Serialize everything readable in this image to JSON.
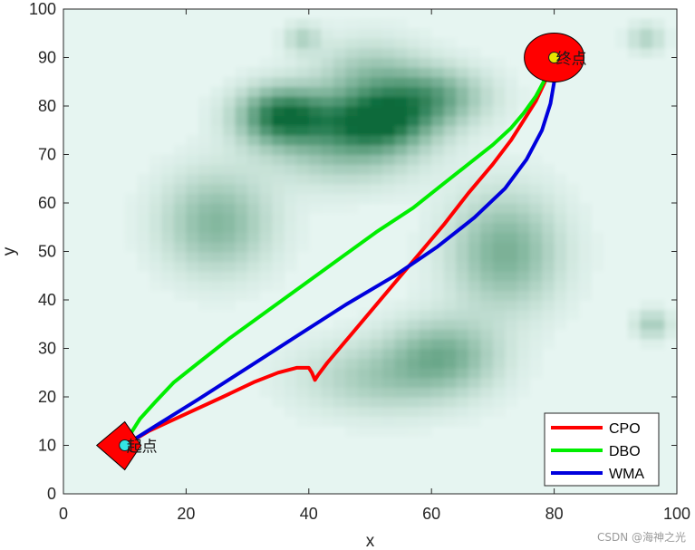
{
  "chart_data": {
    "type": "line",
    "xlabel": "x",
    "ylabel": "y",
    "xlim": [
      0,
      100
    ],
    "ylim": [
      0,
      100
    ],
    "xticks": [
      0,
      20,
      40,
      60,
      80,
      100
    ],
    "yticks": [
      0,
      10,
      20,
      30,
      40,
      50,
      60,
      70,
      80,
      90,
      100
    ],
    "grid": false,
    "legend_position": "bottom-right",
    "background": {
      "type": "heatmap",
      "low_color": "#e6f5f1",
      "high_color": "#0b6b3a",
      "blobs": [
        {
          "x": 36,
          "y": 78,
          "sx": 5,
          "sy": 4,
          "a": 0.95
        },
        {
          "x": 51,
          "y": 77,
          "sx": 6,
          "sy": 4,
          "a": 0.9
        },
        {
          "x": 60,
          "y": 82,
          "sx": 6,
          "sy": 4,
          "a": 0.55
        },
        {
          "x": 50,
          "y": 86,
          "sx": 6,
          "sy": 5,
          "a": 0.35
        },
        {
          "x": 46,
          "y": 71,
          "sx": 8,
          "sy": 5,
          "a": 0.35
        },
        {
          "x": 25,
          "y": 56,
          "sx": 6,
          "sy": 7,
          "a": 0.45
        },
        {
          "x": 72,
          "y": 50,
          "sx": 6,
          "sy": 8,
          "a": 0.5
        },
        {
          "x": 62,
          "y": 29,
          "sx": 6,
          "sy": 5,
          "a": 0.45
        },
        {
          "x": 52,
          "y": 24,
          "sx": 9,
          "sy": 5,
          "a": 0.3
        },
        {
          "x": 39,
          "y": 94,
          "sx": 2,
          "sy": 2,
          "a": 0.25
        },
        {
          "x": 95,
          "y": 94,
          "sx": 2,
          "sy": 2,
          "a": 0.25
        },
        {
          "x": 96,
          "y": 35,
          "sx": 2,
          "sy": 2,
          "a": 0.3
        }
      ]
    },
    "start": {
      "x": 10,
      "y": 10,
      "label": "起点",
      "color": "#ff0000",
      "point_color": "#33e6e6"
    },
    "goal": {
      "x": 80,
      "y": 90,
      "label": "终点",
      "color": "#ff0000",
      "point_color": "#e6e600"
    },
    "series": [
      {
        "name": "CPO",
        "color": "#ff0000",
        "x": [
          10,
          14,
          20,
          26,
          31,
          35,
          38,
          40,
          40.5,
          41,
          41.5,
          43,
          47,
          52,
          57,
          62,
          66,
          70,
          73,
          75,
          77,
          78.5,
          80
        ],
        "y": [
          10,
          13,
          16.5,
          20,
          23,
          25,
          26,
          26,
          25,
          23.5,
          24.5,
          27,
          33,
          40.5,
          48,
          55.5,
          62,
          68,
          73,
          77,
          81,
          85,
          90
        ]
      },
      {
        "name": "DBO",
        "color": "#00ee00",
        "x": [
          10,
          11,
          12.5,
          15,
          18,
          22,
          27,
          33,
          39,
          45,
          51,
          57,
          62,
          66,
          70,
          73,
          75,
          77,
          78.5,
          80
        ],
        "y": [
          10,
          12.5,
          15.5,
          19,
          23,
          27,
          32,
          37.5,
          43,
          48.5,
          54,
          59,
          64,
          68,
          72,
          75.5,
          78.5,
          82,
          85.5,
          90
        ]
      },
      {
        "name": "WMA",
        "color": "#0000dd",
        "x": [
          10,
          15,
          22,
          30,
          38,
          46,
          54,
          61,
          67,
          72,
          75.5,
          78,
          79.4,
          80,
          80.2,
          80
        ],
        "y": [
          10,
          14,
          19.5,
          26,
          32.5,
          39,
          45,
          51,
          57,
          63,
          69,
          75,
          80.5,
          85,
          88,
          90
        ]
      }
    ]
  }
}
